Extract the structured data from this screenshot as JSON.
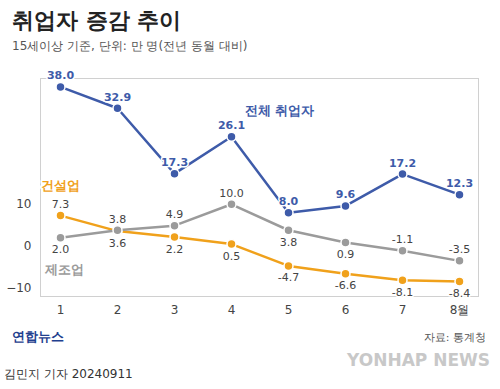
{
  "chart_data": {
    "type": "line",
    "title": "취업자 증감 추이",
    "subtitle": "15세이상 기준, 단위: 만 명(전년 동월 대비)",
    "categories": [
      "1",
      "2",
      "3",
      "4",
      "5",
      "6",
      "7",
      "8월"
    ],
    "series": [
      {
        "name": "전체 취업자",
        "color": "#3e5ba9",
        "marker": "circle",
        "values": [
          38.0,
          32.9,
          17.3,
          26.1,
          8.0,
          9.6,
          17.2,
          12.3
        ],
        "value_labels": [
          "38.0",
          "32.9",
          "17.3",
          "26.1",
          "8.0",
          "9.6",
          "17.2",
          "12.3"
        ]
      },
      {
        "name": "건설업",
        "color": "#f0a11b",
        "marker": "circle",
        "values": [
          7.3,
          3.6,
          2.2,
          0.5,
          -4.7,
          -6.6,
          -8.1,
          -8.4
        ],
        "value_labels": [
          "7.3",
          "3.6",
          "2.2",
          "0.5",
          "-4.7",
          "-6.6",
          "-8.1",
          "-8.4"
        ]
      },
      {
        "name": "제조업",
        "color": "#9b9b9b",
        "marker": "circle",
        "values": [
          2.0,
          3.8,
          4.9,
          10.0,
          3.8,
          0.9,
          -1.1,
          -3.5
        ],
        "value_labels": [
          "2.0",
          "3.8",
          "4.9",
          "10.0",
          "3.8",
          "0.9",
          "-1.1",
          "-3.5"
        ]
      }
    ],
    "ylim": [
      -12,
      40
    ],
    "yticks": [
      -10,
      0,
      10
    ],
    "grid": false,
    "data_labels": true,
    "source": "자료: 통계청",
    "byline": "김민지 기자 20240911",
    "logo": "연합뉴스",
    "watermark": "YONHAP NEWS"
  }
}
